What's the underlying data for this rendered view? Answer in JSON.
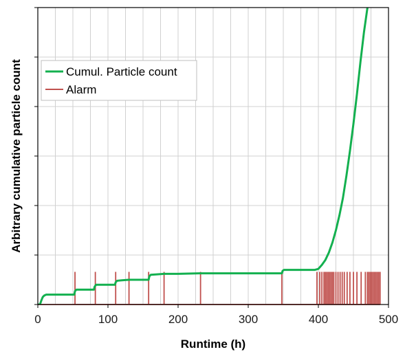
{
  "chart_data": {
    "type": "line",
    "xlabel": "Runtime (h)",
    "ylabel": "Arbitrary cumulative particle count",
    "xlim": [
      0,
      500
    ],
    "x_ticks": [
      0,
      100,
      200,
      300,
      400,
      500
    ],
    "x_minor_step": 25,
    "ylim": [
      0,
      6
    ],
    "y_tick_labels_shown": false,
    "grid": true,
    "legend_position": "upper-left",
    "series": [
      {
        "name": "Cumul. Particle count",
        "color": "#13b04f",
        "x": [
          0,
          3,
          5,
          7,
          9,
          12,
          20,
          30,
          40,
          52,
          53,
          55,
          60,
          70,
          80,
          81,
          83,
          90,
          100,
          110,
          111,
          113,
          120,
          130,
          140,
          150,
          158,
          159,
          161,
          170,
          180,
          200,
          230,
          260,
          300,
          340,
          348,
          349,
          351,
          360,
          380,
          395,
          400,
          405,
          410,
          415,
          420,
          425,
          430,
          435,
          440,
          445,
          450,
          455,
          460,
          465,
          468,
          470
        ],
        "y": [
          0,
          0,
          0.08,
          0.15,
          0.18,
          0.2,
          0.2,
          0.2,
          0.2,
          0.2,
          0.27,
          0.3,
          0.3,
          0.3,
          0.3,
          0.36,
          0.4,
          0.4,
          0.4,
          0.4,
          0.45,
          0.48,
          0.49,
          0.5,
          0.5,
          0.5,
          0.5,
          0.57,
          0.6,
          0.61,
          0.62,
          0.62,
          0.63,
          0.63,
          0.63,
          0.63,
          0.63,
          0.68,
          0.7,
          0.7,
          0.7,
          0.7,
          0.72,
          0.8,
          0.9,
          1.05,
          1.25,
          1.5,
          1.8,
          2.15,
          2.6,
          3.1,
          3.65,
          4.25,
          4.9,
          5.5,
          5.8,
          6.0
        ]
      },
      {
        "name": "Alarm",
        "color": "#c0504d",
        "x": [
          53,
          82,
          111,
          130,
          158,
          180,
          232,
          348,
          398,
          402,
          405,
          408,
          410,
          412,
          414,
          416,
          418,
          420,
          422,
          425,
          428,
          431,
          434,
          437,
          441,
          445,
          450,
          455,
          461,
          467,
          470,
          472,
          474,
          476,
          478,
          480,
          482,
          484,
          486,
          488
        ],
        "y_low": 0,
        "y_high": 0.66
      }
    ]
  }
}
